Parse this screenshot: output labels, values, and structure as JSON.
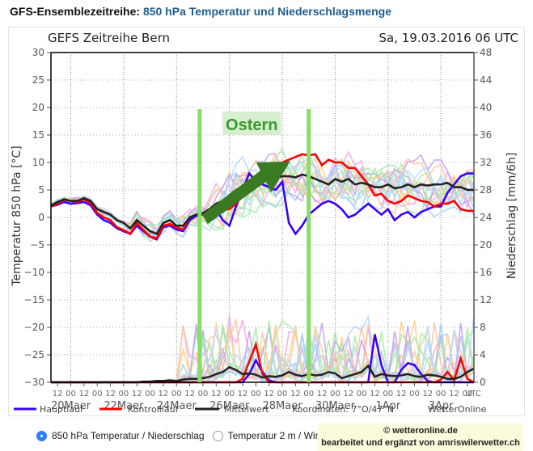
{
  "page": {
    "heading_main": "GFS-Ensemblezeitreihe:",
    "heading_sub": "850 hPa Temperatur und Niederschlagsmenge"
  },
  "footer": {
    "radio_options": [
      {
        "label": "850 hPa Temperatur / Niederschlag",
        "selected": true
      },
      {
        "label": "Temperatur 2 m / Wind",
        "selected": false
      }
    ],
    "credit_line1": "© wetteronline.de",
    "credit_line2": "bearbeitet und ergänzt von amriswilerwetter.ch"
  },
  "colors": {
    "hauptlauf": "#3a00ff",
    "kontrolllauf": "#ff0000",
    "mittelwert": "#222222",
    "ostern_marker": "#88dd66",
    "ostern_label_bg": "#d8efcf",
    "ostern_label_text": "#3a9a30",
    "arrow": "#3a7a22",
    "members": [
      "#f4a8f0",
      "#9fd4f5",
      "#ffd08a",
      "#a6f0a8",
      "#c9a0ee",
      "#a8e6b0",
      "#ffc8a0",
      "#b8d8ff"
    ]
  },
  "chart_data": {
    "type": "line",
    "title": "GEFS Zeitreihe Bern",
    "run_label": "Sa, 19.03.2016 06 UTC",
    "ylabel": "Temperatur 850 hPa [°C]",
    "y2label": "Niederschlag [mm/6h]",
    "ylim": [
      -30,
      30
    ],
    "y2lim": [
      0,
      48
    ],
    "yticks": [
      "30",
      "25",
      "20",
      "15",
      "10",
      "5",
      "0",
      "−5",
      "−10",
      "−15",
      "−20",
      "−25",
      "−30"
    ],
    "y2ticks": [
      "48",
      "44",
      "40",
      "36",
      "32",
      "28",
      "24",
      "20",
      "16",
      "12",
      "8",
      "4",
      "0"
    ],
    "xlabel_unit": "UTC",
    "x_start": "19Maer 06 UTC",
    "x_step_hours": 6,
    "x_hour_ticks": [
      "12",
      "00",
      "12",
      "00",
      "12",
      "00",
      "12",
      "00",
      "12",
      "00",
      "12",
      "00",
      "12",
      "00",
      "12",
      "00",
      "12",
      "00",
      "12",
      "00",
      "12",
      "00",
      "12",
      "00",
      "12",
      "00",
      "12",
      "00",
      "12",
      "00",
      "12",
      "00"
    ],
    "x_day_labels": [
      "20Maer",
      "22Maer",
      "24Maer",
      "26Maer",
      "28Maer",
      "30Maer",
      "1Apr",
      "3Apr"
    ],
    "grid": true,
    "legend": [
      {
        "name": "Hauptlauf",
        "color": "#3a00ff"
      },
      {
        "name": "Kontrolllauf",
        "color": "#ff0000"
      },
      {
        "name": "Mittelwert",
        "color": "#222222"
      }
    ],
    "legend_coords": "Koordinaten: 7°O/47°N",
    "legend_source": "WetterOnline",
    "annotation": {
      "text": "Ostern",
      "start": "25Maer 00 UTC",
      "end": "29Maer 00 UTC"
    },
    "temperature_series": [
      {
        "name": "Hauptlauf",
        "values": [
          2,
          2.3,
          2.8,
          2.5,
          2.6,
          2.8,
          2.2,
          0.5,
          -0.5,
          -1,
          -2,
          -2.5,
          -3,
          -1.5,
          -2.5,
          -3.5,
          -4,
          -1.8,
          -1.5,
          -2.2,
          -2.5,
          -0.5,
          0.3,
          0.5,
          1.3,
          1.5,
          -0.5,
          -1.5,
          2,
          5,
          8,
          6.5,
          6,
          5.5,
          5,
          6.5,
          -1,
          -3,
          -1.5,
          0.5,
          1.5,
          2.5,
          3,
          2.5,
          1.5,
          0,
          0.5,
          1.5,
          2.5,
          1.5,
          0.5,
          1.5,
          -0.5,
          0.5,
          1,
          0,
          1,
          1.5,
          2,
          2,
          4.5,
          6,
          7.5,
          8,
          8
        ]
      },
      {
        "name": "Kontrolllauf",
        "values": [
          2,
          2.5,
          3.2,
          3,
          2.8,
          3.3,
          2.6,
          0.8,
          0,
          -0.5,
          -1.8,
          -2.3,
          -3,
          -1,
          -2.3,
          -3.5,
          -3.8,
          -1.5,
          -1.2,
          -1.8,
          -2.2,
          0,
          0.5,
          0.8,
          1.3,
          1.5,
          1.4,
          1.5,
          2.5,
          4.5,
          5.5,
          6.5,
          7,
          8,
          9,
          10,
          10.5,
          11,
          11.5,
          11.3,
          11.5,
          9.5,
          10.5,
          10,
          10,
          9,
          9,
          7.5,
          6,
          4,
          4.3,
          3,
          2.5,
          3,
          4,
          3.5,
          3,
          2.8,
          2,
          2.5,
          2.5,
          3,
          1.5,
          1.2,
          1.2
        ]
      },
      {
        "name": "Mittelwert",
        "values": [
          2.2,
          2.8,
          3.3,
          3,
          3,
          3.5,
          3,
          1.5,
          1,
          0.5,
          -0.5,
          -1,
          -2,
          -0.5,
          -1.5,
          -2.5,
          -3,
          -1,
          -0.5,
          -1.5,
          -1.5,
          0,
          0.5,
          0.8,
          1.5,
          2.5,
          3,
          4,
          5,
          5.5,
          6,
          6.5,
          6.5,
          7,
          7,
          7.5,
          7.5,
          7.3,
          7.8,
          7.5,
          7,
          6.5,
          6,
          7,
          6.5,
          7,
          6,
          6.3,
          6,
          5.5,
          5.5,
          6,
          5.3,
          5.5,
          6,
          5.5,
          6,
          5.8,
          6,
          6,
          6.3,
          5.5,
          5.5,
          5,
          5
        ]
      }
    ],
    "precip_series": [
      {
        "name": "Hauptlauf",
        "values": [
          0,
          0,
          0,
          0,
          0,
          0,
          0,
          0,
          0,
          0,
          0,
          0,
          0,
          0,
          0,
          0,
          0,
          0,
          0,
          0,
          0,
          0,
          0,
          0,
          0,
          0,
          0,
          0,
          0,
          0,
          1.2,
          3.2,
          1.5,
          0.3,
          0,
          0,
          0,
          0,
          0,
          0,
          0,
          0,
          0,
          0,
          0,
          0,
          0,
          0,
          0,
          7,
          2.5,
          0,
          0,
          1.8,
          2.8,
          2.5,
          1.2,
          0.2,
          0,
          0,
          0,
          0,
          0,
          0,
          0
        ]
      },
      {
        "name": "Kontrolllauf",
        "values": [
          0,
          0,
          0,
          0,
          0,
          0,
          0,
          0,
          0,
          0,
          0,
          0,
          0,
          0,
          0,
          0,
          0,
          0,
          0,
          0,
          0,
          0,
          0,
          0,
          0,
          0,
          0,
          0,
          0,
          0.5,
          3,
          5.5,
          1.2,
          0,
          0,
          0,
          0,
          0,
          0,
          0,
          0,
          0,
          0,
          0,
          0,
          0,
          0,
          0,
          0,
          0,
          0,
          0,
          0,
          0,
          0,
          0,
          0,
          0,
          0,
          0.4,
          1.5,
          0.3,
          3.5,
          0.5,
          0
        ]
      },
      {
        "name": "Mittelwert",
        "values": [
          0,
          0,
          0,
          0,
          0,
          0,
          0,
          0,
          0,
          0,
          0,
          0,
          0,
          0,
          0.1,
          0.1,
          0.2,
          0.2,
          0.3,
          0.2,
          0.4,
          0.5,
          0.5,
          0.6,
          0.8,
          1.2,
          1.5,
          2.2,
          1.8,
          1.2,
          1.3,
          1.1,
          0.7,
          0.9,
          0.8,
          1,
          1.5,
          1.1,
          0.9,
          1.2,
          1,
          1.1,
          1.5,
          1.3,
          0.6,
          0.9,
          1.2,
          1.5,
          2.4,
          0.8,
          1.2,
          1,
          0.9,
          1,
          1.2,
          0.9,
          0.8,
          1.1,
          1,
          0.8,
          0.5,
          0.5,
          0.8,
          1.5,
          2
        ]
      }
    ]
  }
}
